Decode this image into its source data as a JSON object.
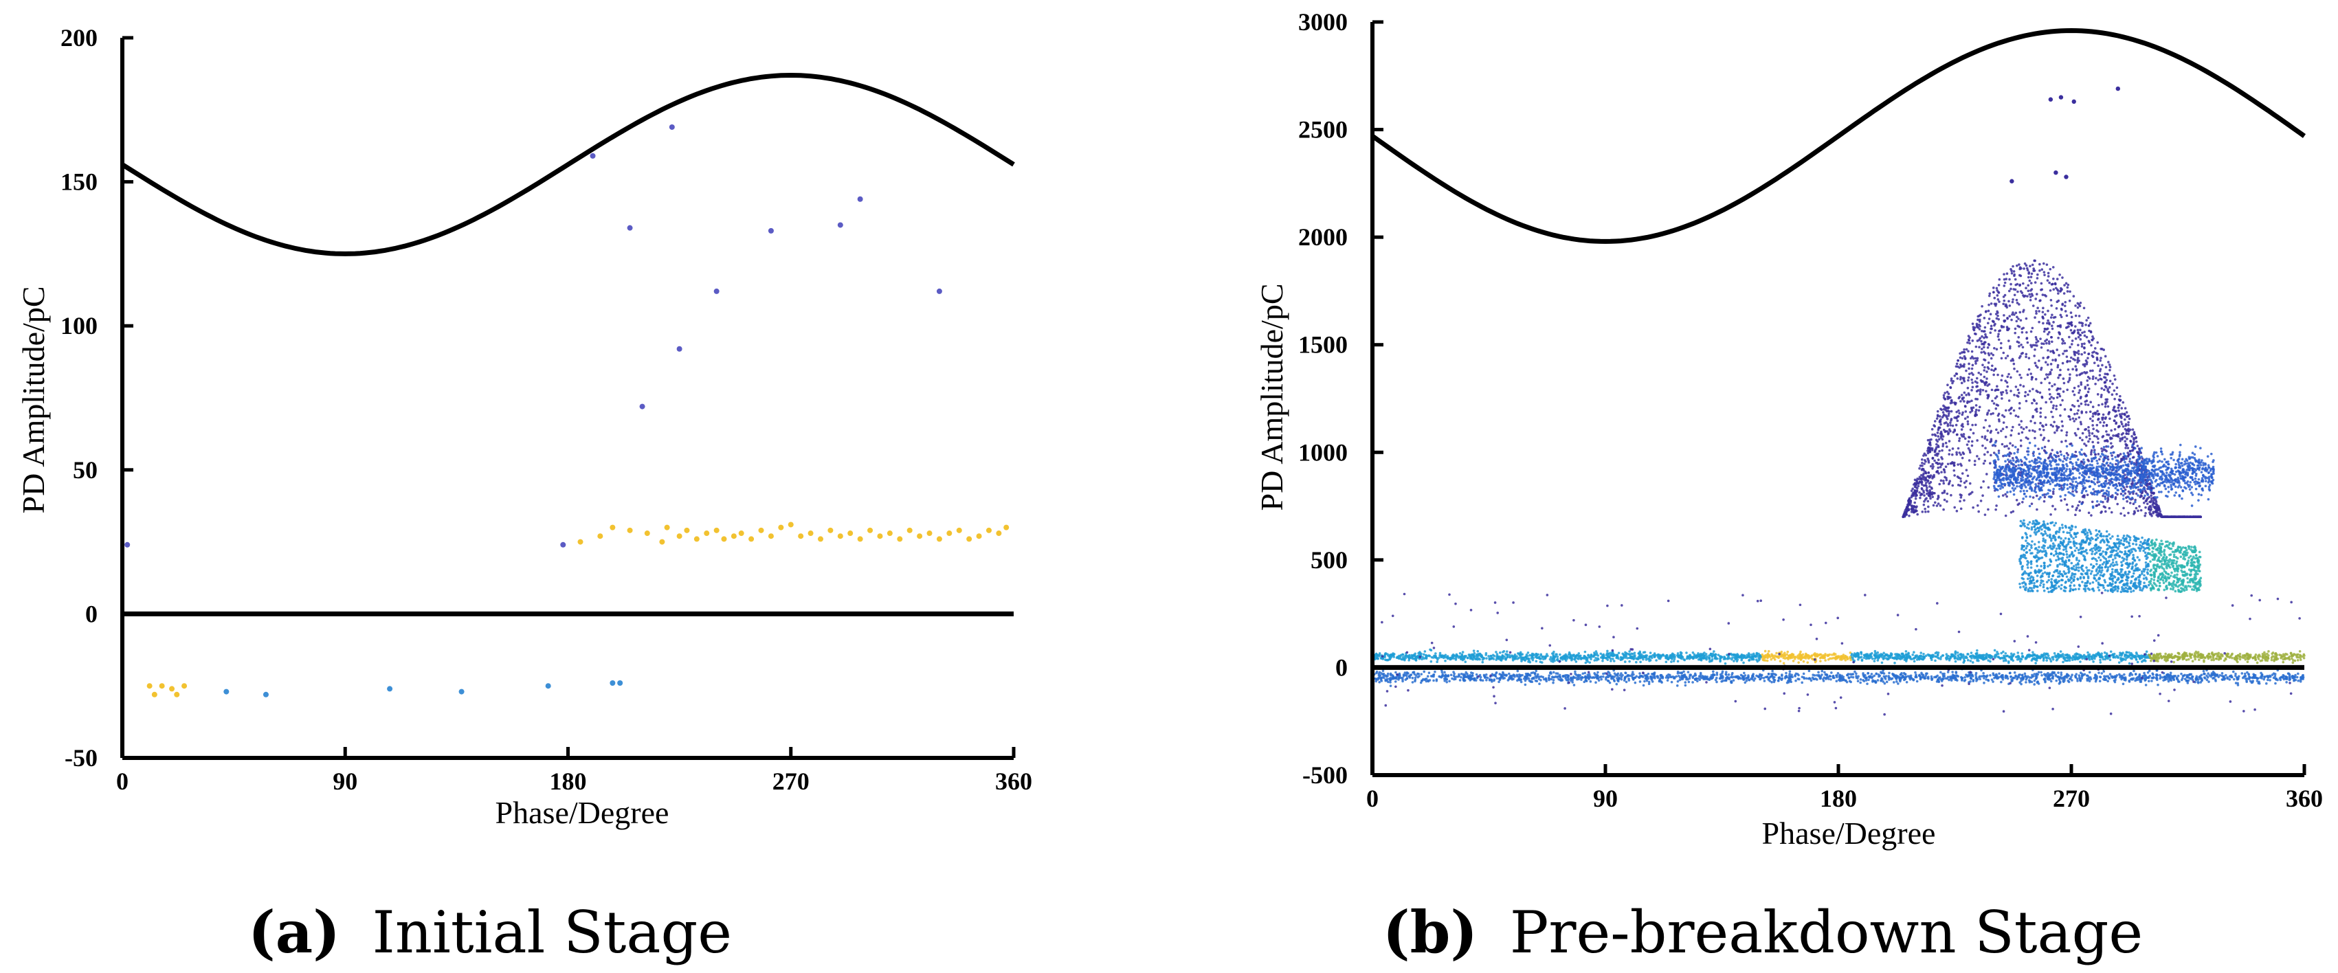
{
  "chart_data": [
    {
      "type": "scatter",
      "panel_tag": "(a)",
      "caption": "Initial Stage",
      "xlabel": "Phase/Degree",
      "ylabel": "PD Amplitude/pC",
      "xlim": [
        0,
        360
      ],
      "ylim": [
        -50,
        200
      ],
      "xticks": [
        0,
        90,
        180,
        270,
        360
      ],
      "yticks": [
        -50,
        0,
        50,
        100,
        150,
        200
      ],
      "xtick_labels": [
        "0",
        "90",
        "180",
        "270",
        "360"
      ],
      "ytick_labels": [
        "-50",
        "0",
        "50",
        "100",
        "150",
        "200"
      ],
      "reference_sine": {
        "center": 156,
        "amplitude": 31,
        "peak_phase": 270
      },
      "zero_line": 0,
      "colors": {
        "axis": "#000000",
        "low": "#5b5bc4",
        "mid": "#29a3d6",
        "high": "#f2c230"
      },
      "series": [
        {
          "name": "sparse high pulses",
          "color": "#5b5bc4",
          "points": [
            [
              2,
              24
            ],
            [
              178,
              24
            ],
            [
              190,
              159
            ],
            [
              205,
              134
            ],
            [
              210,
              72
            ],
            [
              222,
              169
            ],
            [
              225,
              92
            ],
            [
              240,
              112
            ],
            [
              262,
              133
            ],
            [
              290,
              135
            ],
            [
              298,
              144
            ],
            [
              330,
              112
            ]
          ]
        },
        {
          "name": "negative pulses",
          "color": "#3d8fd6",
          "points": [
            [
              42,
              -27
            ],
            [
              58,
              -28
            ],
            [
              108,
              -26
            ],
            [
              137,
              -27
            ],
            [
              172,
              -25
            ],
            [
              198,
              -24
            ],
            [
              201,
              -24
            ]
          ]
        },
        {
          "name": "negative pulses (yellow)",
          "color": "#f2c230",
          "points": [
            [
              11,
              -25
            ],
            [
              13,
              -28
            ],
            [
              16,
              -25
            ],
            [
              20,
              -26
            ],
            [
              22,
              -28
            ],
            [
              25,
              -25
            ]
          ]
        },
        {
          "name": "positive band",
          "color": "#f2c230",
          "points": [
            [
              185,
              25
            ],
            [
              193,
              27
            ],
            [
              198,
              30
            ],
            [
              205,
              29
            ],
            [
              212,
              28
            ],
            [
              218,
              25
            ],
            [
              220,
              30
            ],
            [
              225,
              27
            ],
            [
              228,
              29
            ],
            [
              232,
              26
            ],
            [
              236,
              28
            ],
            [
              240,
              29
            ],
            [
              243,
              26
            ],
            [
              247,
              27
            ],
            [
              250,
              28
            ],
            [
              254,
              26
            ],
            [
              258,
              29
            ],
            [
              262,
              27
            ],
            [
              266,
              30
            ],
            [
              270,
              31
            ],
            [
              274,
              27
            ],
            [
              278,
              28
            ],
            [
              282,
              26
            ],
            [
              286,
              29
            ],
            [
              290,
              27
            ],
            [
              294,
              28
            ],
            [
              298,
              26
            ],
            [
              302,
              29
            ],
            [
              306,
              27
            ],
            [
              310,
              28
            ],
            [
              314,
              26
            ],
            [
              318,
              29
            ],
            [
              322,
              27
            ],
            [
              326,
              28
            ],
            [
              330,
              26
            ],
            [
              334,
              28
            ],
            [
              338,
              29
            ],
            [
              342,
              26
            ],
            [
              346,
              27
            ],
            [
              350,
              29
            ],
            [
              354,
              28
            ],
            [
              357,
              30
            ]
          ]
        }
      ]
    },
    {
      "type": "scatter",
      "panel_tag": "(b)",
      "caption": "Pre-breakdown Stage",
      "xlabel": "Phase/Degree",
      "ylabel": "PD Amplitude/pC",
      "xlim": [
        0,
        360
      ],
      "ylim": [
        -500,
        3000
      ],
      "xticks": [
        0,
        90,
        180,
        270,
        360
      ],
      "yticks": [
        -500,
        0,
        500,
        1000,
        1500,
        2000,
        2500,
        3000
      ],
      "xtick_labels": [
        "0",
        "90",
        "180",
        "270",
        "360"
      ],
      "ytick_labels": [
        "-500",
        "0",
        "500",
        "1000",
        "1500",
        "2000",
        "2500",
        "3000"
      ],
      "reference_sine": {
        "center": 2470,
        "amplitude": 490,
        "peak_phase": 270
      },
      "zero_line": 0,
      "colors": {
        "axis": "#000000",
        "low": "#3b2f9e",
        "mid": "#1f8fd6",
        "high": "#f2c230"
      },
      "clusters": [
        {
          "name": "upper dome",
          "color": "#3b2f9e",
          "phase_range": [
            205,
            320
          ],
          "amp_range": [
            700,
            1900
          ],
          "shape": "dome",
          "peak_phase": 265,
          "count": 2600
        },
        {
          "name": "mid band",
          "color": "#2a5fd0",
          "phase_range": [
            240,
            325
          ],
          "amp_range": [
            800,
            1000
          ],
          "shape": "band",
          "count": 1400
        },
        {
          "name": "lower wedge",
          "color": "#1f8fd6",
          "phase_range": [
            250,
            320
          ],
          "amp_range": [
            350,
            700
          ],
          "shape": "wedge",
          "count": 1500
        },
        {
          "name": "positive baseline band",
          "color": "#1f9ed6",
          "phase_range": [
            0,
            360
          ],
          "amp_range": [
            30,
            70
          ],
          "shape": "band",
          "count": 2200
        },
        {
          "name": "negative baseline band",
          "color": "#2a6fd0",
          "phase_range": [
            0,
            360
          ],
          "amp_range": [
            -70,
            -20
          ],
          "shape": "band",
          "count": 1800
        },
        {
          "name": "scattered outliers",
          "color": "#3b2f9e",
          "phase_range": [
            0,
            360
          ],
          "amp_range": [
            -220,
            350
          ],
          "shape": "sparse",
          "count": 140
        }
      ],
      "series": [
        {
          "name": "high outliers",
          "color": "#3b2f9e",
          "points": [
            [
              262,
              2640
            ],
            [
              266,
              2650
            ],
            [
              271,
              2630
            ],
            [
              288,
              2690
            ],
            [
              264,
              2300
            ],
            [
              268,
              2280
            ],
            [
              247,
              2260
            ]
          ]
        }
      ]
    }
  ]
}
